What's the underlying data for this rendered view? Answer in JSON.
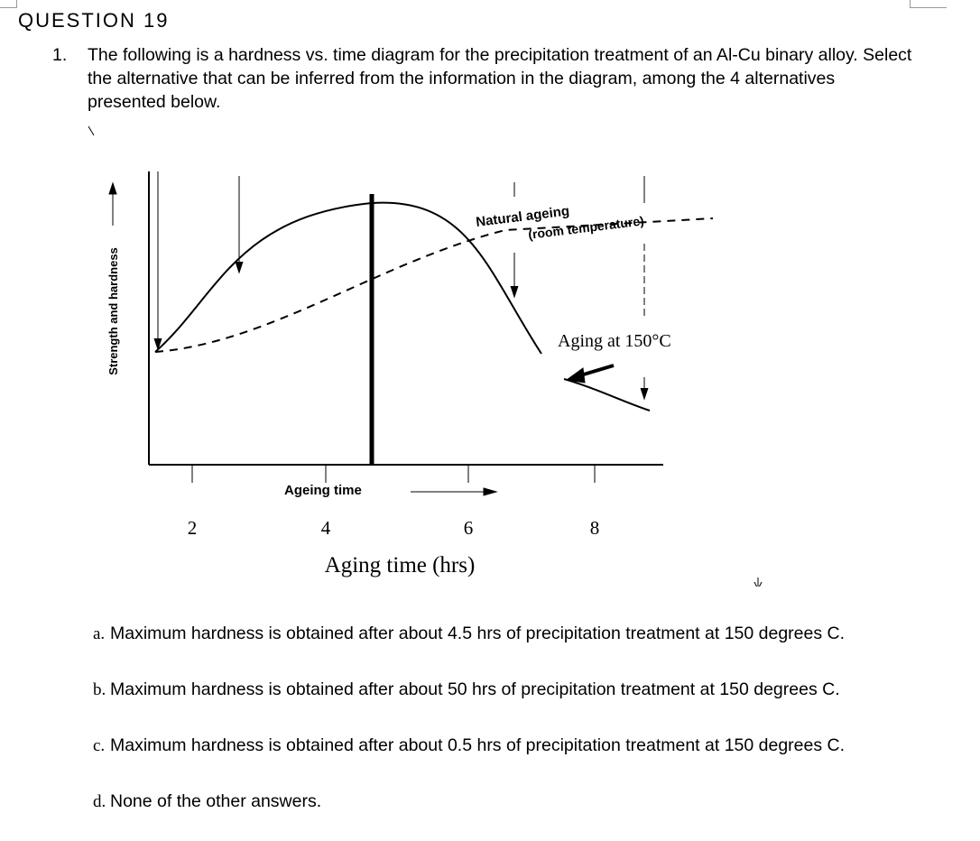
{
  "header": {
    "title": "QUESTION 19"
  },
  "question": {
    "number": "1.",
    "text": "The following is a hardness vs. time diagram for the precipitation treatment of an Al-Cu binary alloy. Select the alternative that can be inferred from the information in the diagram, among the 4 alternatives presented below."
  },
  "diagram": {
    "y_label": "Strength and hardness",
    "natural_ageing": "Natural ageing",
    "room_temperature": "(room temperature)",
    "aging_150": "Aging at 150°C",
    "ageing_time": "Ageing time",
    "x_ticks": [
      "2",
      "4",
      "6",
      "8"
    ],
    "x_title": "Aging time (hrs)"
  },
  "options": [
    {
      "letter": "a.",
      "text": "Maximum hardness is obtained after about 4.5 hrs of precipitation treatment at 150 degrees C."
    },
    {
      "letter": "b.",
      "text": "Maximum hardness is obtained after about 50 hrs of precipitation treatment at 150 degrees C."
    },
    {
      "letter": "c.",
      "text": "Maximum hardness is obtained after about 0.5 hrs of precipitation treatment at 150 degrees C."
    },
    {
      "letter": "d.",
      "text": "None of the other answers."
    }
  ]
}
